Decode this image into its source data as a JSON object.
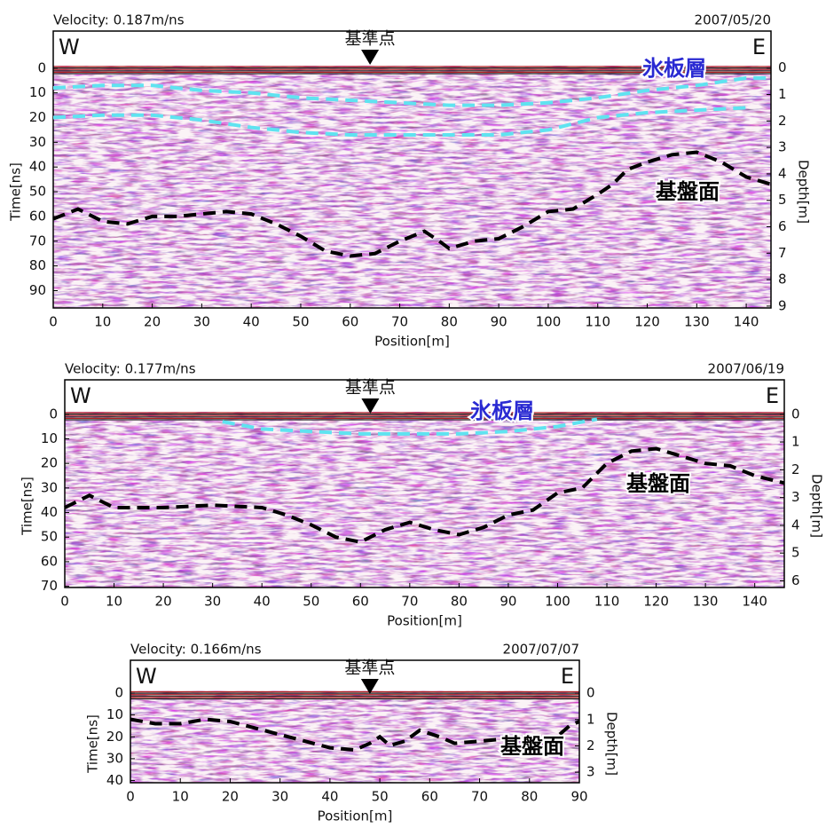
{
  "chart_data": [
    {
      "type": "line",
      "velocity": "Velocity: 0.187m/ns",
      "date": "2007/05/20",
      "west": "W",
      "east": "E",
      "reference_label": "基準点",
      "reference_x": 64,
      "xlabel": "Position[m]",
      "ylabel": "Time[ns]",
      "y2label": "Depth[m]",
      "xlim": [
        0,
        145
      ],
      "xticks": [
        0,
        10,
        20,
        30,
        40,
        50,
        60,
        70,
        80,
        90,
        100,
        110,
        120,
        130,
        140
      ],
      "ylim": [
        97,
        -15
      ],
      "yticks": [
        0,
        10,
        20,
        30,
        40,
        50,
        60,
        70,
        80,
        90
      ],
      "y2lim": [
        9.07,
        -1.4
      ],
      "y2ticks": [
        0,
        1,
        2,
        3,
        4,
        5,
        6,
        7,
        8,
        9
      ],
      "series": [
        {
          "name": "氷板層",
          "color": "#5fe3f0",
          "x": [
            0,
            10,
            20,
            30,
            40,
            50,
            60,
            70,
            80,
            90,
            100,
            110,
            120,
            130,
            140,
            145,
            null,
            0,
            10,
            20,
            30,
            40,
            50,
            60,
            70,
            80,
            90,
            100,
            110,
            120,
            130,
            140
          ],
          "values": [
            8,
            7,
            7,
            9,
            10,
            12,
            13,
            14,
            15,
            15,
            14,
            12,
            9,
            7,
            4,
            4,
            null,
            20,
            19,
            19,
            21,
            24,
            26,
            27,
            27,
            27,
            27,
            25,
            20,
            18,
            17,
            16
          ]
        },
        {
          "name": "基盤面",
          "color": "#000000",
          "x": [
            0,
            5,
            10,
            15,
            20,
            25,
            30,
            35,
            40,
            45,
            50,
            55,
            60,
            65,
            70,
            75,
            78,
            80,
            85,
            90,
            95,
            100,
            105,
            110,
            113,
            116,
            120,
            125,
            130,
            135,
            140,
            145
          ],
          "values": [
            61,
            57,
            62,
            63,
            60,
            60,
            59,
            58,
            59,
            63,
            68,
            74,
            76,
            75,
            70,
            66,
            70,
            73,
            70,
            69,
            64,
            58,
            57,
            51,
            47,
            41,
            38,
            35,
            34,
            38,
            44,
            47
          ]
        }
      ]
    },
    {
      "type": "line",
      "velocity": "Velocity: 0.177m/ns",
      "date": "2007/06/19",
      "west": "W",
      "east": "E",
      "reference_label": "基準点",
      "reference_x": 62,
      "xlabel": "Position[m]",
      "ylabel": "Time[ns]",
      "y2label": "Depth[m]",
      "xlim": [
        0,
        146
      ],
      "xticks": [
        0,
        10,
        20,
        30,
        40,
        50,
        60,
        70,
        80,
        90,
        100,
        110,
        120,
        130,
        140
      ],
      "ylim": [
        70.5,
        -14
      ],
      "yticks": [
        0,
        10,
        20,
        30,
        40,
        50,
        60,
        70
      ],
      "y2lim": [
        6.24,
        -1.24
      ],
      "y2ticks": [
        0,
        1,
        2,
        3,
        4,
        5,
        6
      ],
      "series": [
        {
          "name": "氷板層",
          "color": "#5fe3f0",
          "x": [
            32,
            40,
            50,
            60,
            70,
            80,
            90,
            100,
            108
          ],
          "values": [
            3,
            6,
            7,
            8,
            8,
            8,
            7,
            5,
            2
          ]
        },
        {
          "name": "基盤面",
          "color": "#000000",
          "x": [
            0,
            5,
            10,
            20,
            30,
            40,
            45,
            50,
            55,
            60,
            65,
            70,
            75,
            80,
            85,
            90,
            95,
            100,
            105,
            110,
            115,
            120,
            125,
            130,
            135,
            140,
            146
          ],
          "values": [
            38,
            33,
            38,
            38,
            37,
            38,
            41,
            45,
            50,
            52,
            47,
            44,
            47,
            49,
            46,
            41,
            39,
            32,
            30,
            20,
            15,
            14,
            17,
            20,
            21,
            25,
            28
          ]
        }
      ]
    },
    {
      "type": "line",
      "velocity": "Velocity: 0.166m/ns",
      "date": "2007/07/07",
      "west": "W",
      "east": "E",
      "reference_label": "基準点",
      "reference_x": 48,
      "xlabel": "Position[m]",
      "ylabel": "Time[ns]",
      "y2label": "Depth[m]",
      "xlim": [
        0,
        90
      ],
      "xticks": [
        0,
        10,
        20,
        30,
        40,
        50,
        60,
        70,
        80,
        90
      ],
      "ylim": [
        41,
        -15
      ],
      "yticks": [
        0,
        10,
        20,
        30,
        40
      ],
      "y2lim": [
        3.4,
        -1.25
      ],
      "y2ticks": [
        0,
        1,
        2,
        3
      ],
      "series": [
        {
          "name": "基盤面",
          "color": "#000000",
          "x": [
            0,
            5,
            10,
            15,
            20,
            25,
            30,
            35,
            40,
            45,
            48,
            50,
            52,
            55,
            58,
            62,
            65,
            70,
            75,
            80,
            85,
            88,
            90
          ],
          "values": [
            12,
            14,
            14,
            12,
            13,
            16,
            19,
            22,
            25,
            26,
            23,
            20,
            24,
            22,
            17,
            20,
            23,
            22,
            21,
            20,
            21,
            15,
            13
          ]
        }
      ]
    }
  ]
}
